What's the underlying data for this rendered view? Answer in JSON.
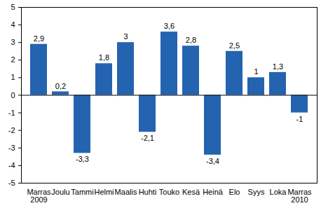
{
  "chart_data": {
    "type": "bar",
    "categories": [
      "Marras\n2009",
      "Joulu",
      "Tammi",
      "Helmi",
      "Maalis",
      "Huhti",
      "Touko",
      "Kesä",
      "Heinä",
      "Elo",
      "Syys",
      "Loka",
      "Marras\n2010"
    ],
    "values": [
      2.9,
      0.2,
      -3.3,
      1.8,
      3,
      -2.1,
      3.6,
      2.8,
      -3.4,
      2.5,
      1,
      1.3,
      -1
    ],
    "value_labels": [
      "2,9",
      "0,2",
      "-3,3",
      "1,8",
      "3",
      "-2,1",
      "3,6",
      "2,8",
      "-3,4",
      "2,5",
      "1",
      "1,3",
      "-1"
    ],
    "color": "#2463b0",
    "ylim": [
      -5,
      5
    ],
    "yticks": [
      -5,
      -4,
      -3,
      -2,
      -1,
      0,
      1,
      2,
      3,
      4,
      5
    ],
    "grid": false,
    "data_labels": true
  }
}
